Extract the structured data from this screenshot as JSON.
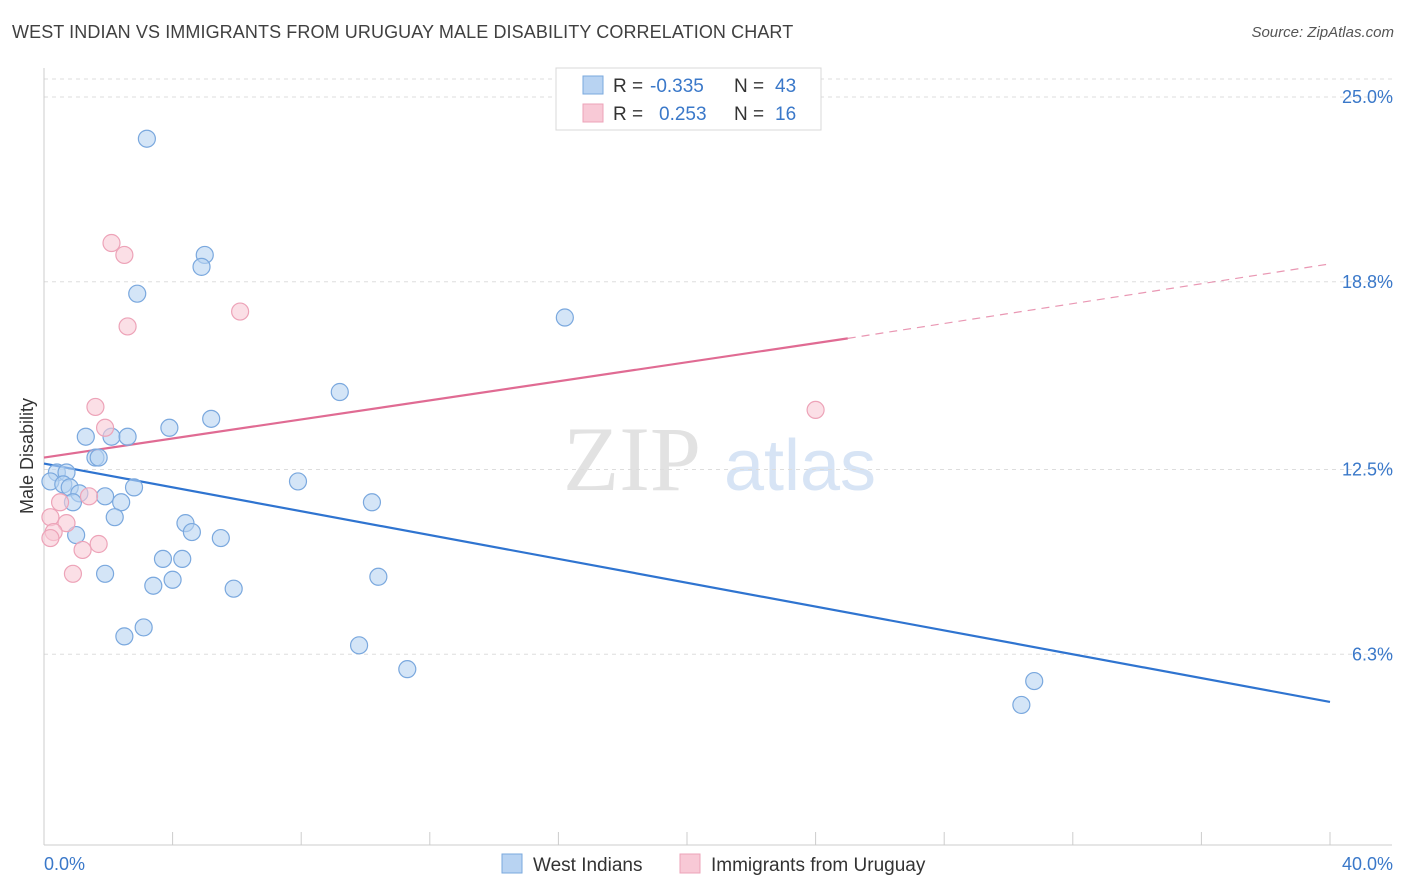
{
  "title": "WEST INDIAN VS IMMIGRANTS FROM URUGUAY MALE DISABILITY CORRELATION CHART",
  "source": "Source: ZipAtlas.com",
  "watermark": {
    "zip": "ZIP",
    "atlas": "atlas"
  },
  "colors": {
    "blue_fill": "#b8d3f2",
    "blue_stroke": "#7aa8de",
    "blue_line": "#2f74d0",
    "pink_fill": "#f8c9d6",
    "pink_stroke": "#eda3b8",
    "pink_line": "#e06b93",
    "grid": "#dddddd",
    "tick_text": "#3a78c9"
  },
  "stats": {
    "r_label": "R =",
    "n_label": "N =",
    "blue": {
      "r": "-0.335",
      "n": "43"
    },
    "pink": {
      "r": "0.253",
      "n": "16"
    }
  },
  "chart_data": {
    "type": "scatter",
    "title": "WEST INDIAN VS IMMIGRANTS FROM URUGUAY MALE DISABILITY CORRELATION CHART",
    "xlabel": "",
    "ylabel": "Male Disability",
    "xlim": [
      0,
      40
    ],
    "ylim": [
      0,
      25.5
    ],
    "x_tick_labels": [
      "0.0%",
      "40.0%"
    ],
    "y_ticks": [
      6.3,
      12.5,
      18.8,
      25.0
    ],
    "y_tick_labels": [
      "6.3%",
      "12.5%",
      "18.8%",
      "25.0%"
    ],
    "grid": "horizontal dashed",
    "legend": "top-center and bottom-center",
    "series": [
      {
        "name": "West Indians",
        "color": "#b8d3f2",
        "trend": {
          "x": [
            0,
            40
          ],
          "y": [
            12.7,
            4.7
          ],
          "style": "solid"
        },
        "points": [
          [
            3.2,
            23.6
          ],
          [
            5.0,
            19.7
          ],
          [
            4.9,
            19.3
          ],
          [
            2.9,
            18.4
          ],
          [
            16.2,
            17.6
          ],
          [
            9.2,
            15.1
          ],
          [
            5.2,
            14.2
          ],
          [
            3.9,
            13.9
          ],
          [
            1.3,
            13.6
          ],
          [
            2.1,
            13.6
          ],
          [
            2.6,
            13.6
          ],
          [
            1.6,
            12.9
          ],
          [
            1.7,
            12.9
          ],
          [
            0.4,
            12.4
          ],
          [
            0.7,
            12.4
          ],
          [
            0.2,
            12.1
          ],
          [
            0.6,
            12.0
          ],
          [
            0.8,
            11.9
          ],
          [
            7.9,
            12.1
          ],
          [
            2.8,
            11.9
          ],
          [
            1.9,
            11.6
          ],
          [
            1.1,
            11.7
          ],
          [
            0.9,
            11.4
          ],
          [
            2.4,
            11.4
          ],
          [
            10.2,
            11.4
          ],
          [
            2.2,
            10.9
          ],
          [
            4.4,
            10.7
          ],
          [
            4.6,
            10.4
          ],
          [
            5.5,
            10.2
          ],
          [
            1.0,
            10.3
          ],
          [
            3.7,
            9.5
          ],
          [
            4.3,
            9.5
          ],
          [
            1.9,
            9.0
          ],
          [
            10.4,
            8.9
          ],
          [
            4.0,
            8.8
          ],
          [
            3.4,
            8.6
          ],
          [
            5.9,
            8.5
          ],
          [
            3.1,
            7.2
          ],
          [
            2.5,
            6.9
          ],
          [
            9.8,
            6.6
          ],
          [
            11.3,
            5.8
          ],
          [
            30.8,
            5.4
          ],
          [
            30.4,
            4.6
          ]
        ]
      },
      {
        "name": "Immigrants from Uruguay",
        "color": "#f8c9d6",
        "trend": {
          "x": [
            0,
            25
          ],
          "y": [
            12.9,
            16.9
          ],
          "style": "solid",
          "extended": {
            "x": [
              25,
              40
            ],
            "y": [
              16.9,
              19.4
            ],
            "style": "dashed"
          }
        },
        "points": [
          [
            2.1,
            20.1
          ],
          [
            2.5,
            19.7
          ],
          [
            6.1,
            17.8
          ],
          [
            2.6,
            17.3
          ],
          [
            1.6,
            14.6
          ],
          [
            1.9,
            13.9
          ],
          [
            24.0,
            14.5
          ],
          [
            1.4,
            11.6
          ],
          [
            0.5,
            11.4
          ],
          [
            0.2,
            10.9
          ],
          [
            0.7,
            10.7
          ],
          [
            0.3,
            10.4
          ],
          [
            0.2,
            10.2
          ],
          [
            1.7,
            10.0
          ],
          [
            1.2,
            9.8
          ],
          [
            0.9,
            9.0
          ]
        ]
      }
    ]
  }
}
